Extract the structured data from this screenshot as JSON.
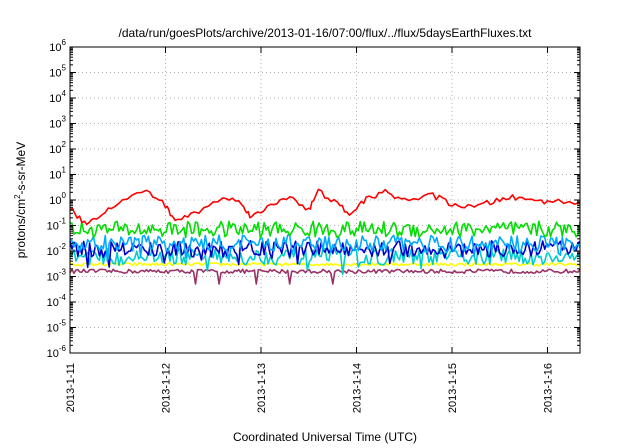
{
  "chart_data": {
    "type": "line",
    "title": "/data/run/goesPlots/archive/2013-01-16/07:00/flux/../flux/5daysEarthFluxes.txt",
    "xlabel": "Coordinated Universal Time (UTC)",
    "ylabel": {
      "prefix": "protons/cm",
      "superscript": "2",
      "suffix": "-s-sr-MeV"
    },
    "y_scale": "log",
    "ylim": [
      1e-06,
      1000000.0
    ],
    "y_ticks": [
      {
        "base": "10",
        "exp": "6"
      },
      {
        "base": "10",
        "exp": "5"
      },
      {
        "base": "10",
        "exp": "4"
      },
      {
        "base": "10",
        "exp": "3"
      },
      {
        "base": "10",
        "exp": "2"
      },
      {
        "base": "10",
        "exp": "1"
      },
      {
        "base": "10",
        "exp": "0"
      },
      {
        "base": "10",
        "exp": "-1"
      },
      {
        "base": "10",
        "exp": "-2"
      },
      {
        "base": "10",
        "exp": "-3"
      },
      {
        "base": "10",
        "exp": "-4"
      },
      {
        "base": "10",
        "exp": "-5"
      },
      {
        "base": "10",
        "exp": "-6"
      }
    ],
    "x_ticks": [
      "2013-1-11",
      "2013-1-12",
      "2013-1-13",
      "2013-1-14",
      "2013-1-15",
      "2013-1-16"
    ],
    "xlim_days": [
      0,
      5.34
    ],
    "grid": true,
    "series": [
      {
        "color": "#ff0000",
        "points": [
          [
            0.0,
            0.5
          ],
          [
            0.15,
            0.12
          ],
          [
            0.3,
            0.25
          ],
          [
            0.5,
            0.7
          ],
          [
            0.8,
            2.5
          ],
          [
            1.0,
            0.6
          ],
          [
            1.1,
            0.15
          ],
          [
            1.3,
            0.3
          ],
          [
            1.6,
            1.2
          ],
          [
            1.8,
            0.8
          ],
          [
            1.9,
            0.2
          ],
          [
            2.1,
            0.6
          ],
          [
            2.3,
            1.5
          ],
          [
            2.5,
            0.4
          ],
          [
            2.6,
            2.2
          ],
          [
            2.8,
            0.7
          ],
          [
            2.95,
            0.25
          ],
          [
            3.1,
            1.2
          ],
          [
            3.3,
            2.0
          ],
          [
            3.5,
            1.0
          ],
          [
            3.8,
            1.5
          ],
          [
            4.0,
            0.7
          ],
          [
            4.2,
            0.5
          ],
          [
            4.4,
            0.8
          ],
          [
            4.6,
            1.3
          ],
          [
            4.8,
            1.0
          ],
          [
            5.0,
            0.9
          ],
          [
            5.34,
            0.8
          ]
        ]
      },
      {
        "color": "#00dd00",
        "level": 0.07
      },
      {
        "color": "#00aaff",
        "level": 0.02
      },
      {
        "color": "#0000cc",
        "level": 0.012
      },
      {
        "color": "#00cccc",
        "level": 0.006
      },
      {
        "color": "#ffff00",
        "level": 0.003
      },
      {
        "color": "#993366",
        "level": 0.0016
      }
    ]
  }
}
